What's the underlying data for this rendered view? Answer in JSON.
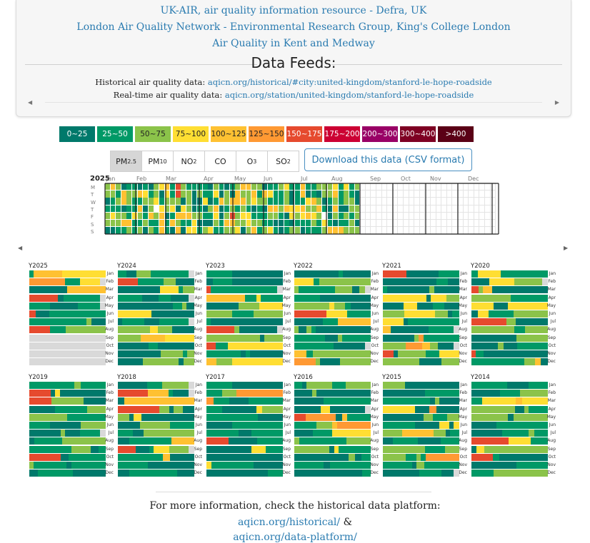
{
  "credits": [
    "UK-AIR, air quality information resource - Defra, UK",
    "London Air Quality Network - Environmental Research Group, King's College London",
    "Air Quality in Kent and Medway"
  ],
  "feeds": {
    "title": "Data Feeds:",
    "historical_label": "Historical air quality data:",
    "historical_link": "aqicn.org/historical/#city:united-kingdom/stanford-le-hope-roadside",
    "realtime_label": "Real-time air quality data:",
    "realtime_link": "aqicn.org/station/united-kingdom/stanford-le-hope-roadside"
  },
  "legend": [
    {
      "label": "0~25",
      "bg": "#00796b",
      "fg": "#ffffff"
    },
    {
      "label": "25~50",
      "bg": "#009966",
      "fg": "#ffffff"
    },
    {
      "label": "50~75",
      "bg": "#8bc34a",
      "fg": "#222222"
    },
    {
      "label": "75~100",
      "bg": "#ffde33",
      "fg": "#222222"
    },
    {
      "label": "100~125",
      "bg": "#ffc132",
      "fg": "#222222"
    },
    {
      "label": "125~150",
      "bg": "#ff9933",
      "fg": "#222222"
    },
    {
      "label": "150~175",
      "bg": "#e64a2e",
      "fg": "#ffffff"
    },
    {
      "label": "175~200",
      "bg": "#cc0033",
      "fg": "#ffffff"
    },
    {
      "label": "200~300",
      "bg": "#990066",
      "fg": "#ffffff"
    },
    {
      "label": "300~400",
      "bg": "#7e0023",
      "fg": "#ffffff"
    },
    {
      "label": ">400",
      "bg": "#5a0016",
      "fg": "#ffffff"
    }
  ],
  "tabs": [
    {
      "main": "PM",
      "sub": "2.5",
      "active": true
    },
    {
      "main": "PM",
      "sub": "10",
      "active": false
    },
    {
      "main": "NO",
      "sub": "2",
      "active": false
    },
    {
      "main": "CO",
      "sub": "",
      "active": false
    },
    {
      "main": "O",
      "sub": "3",
      "active": false
    },
    {
      "main": "SO",
      "sub": "2",
      "active": false
    }
  ],
  "download_label": "Download this data (CSV format)",
  "calendar": {
    "year": "2025",
    "months": [
      "Jan",
      "Feb",
      "Mar",
      "Apr",
      "May",
      "Jun",
      "Jul",
      "Aug",
      "Sep",
      "Oct",
      "Nov",
      "Dec"
    ],
    "days": [
      "M",
      "T",
      "W",
      "T",
      "F",
      "S",
      "S"
    ]
  },
  "years_row1": [
    "Y2025",
    "Y2024",
    "Y2023",
    "Y2022",
    "Y2021",
    "Y2020"
  ],
  "years_row2": [
    "Y2019",
    "Y2018",
    "Y2017",
    "Y2016",
    "Y2015",
    "Y2014"
  ],
  "month_labels": [
    "Jan",
    "Feb",
    "Mar",
    "Apr",
    "May",
    "Jun",
    "Jul",
    "Aug",
    "Sep",
    "Oct",
    "Nov",
    "Dec"
  ],
  "footer": {
    "text": "For more information, check the historical data platform:",
    "link1": "aqicn.org/historical/",
    "amp": " &",
    "link2": "aqicn.org/data-platform/"
  }
}
